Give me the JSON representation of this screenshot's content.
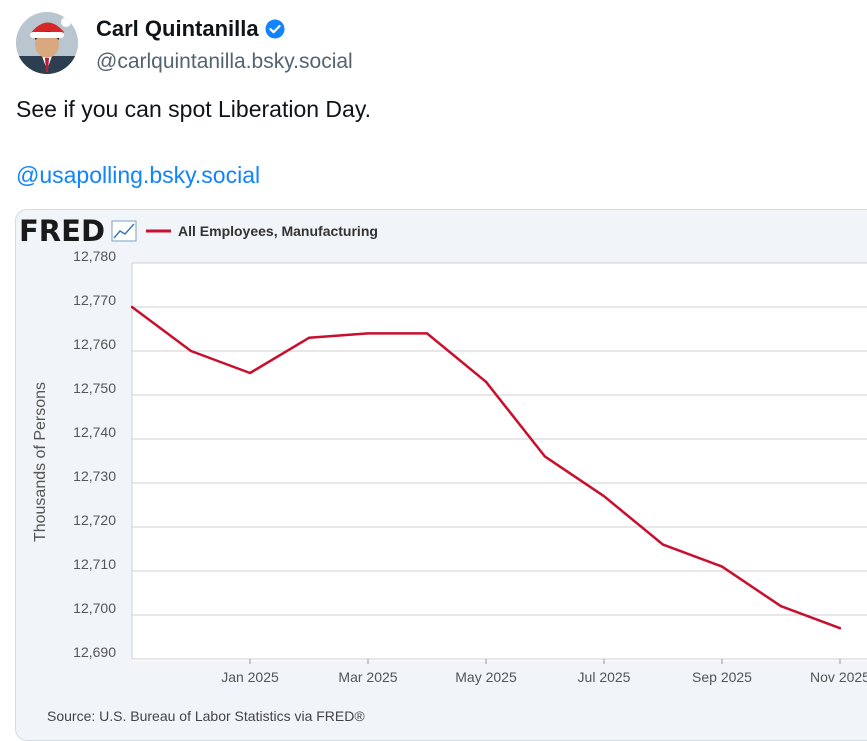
{
  "post": {
    "author_name": "Carl Quintanilla",
    "author_handle": "@carlquintanilla.bsky.social",
    "text": "See if you can spot Liberation Day.",
    "mention": "@usapolling.bsky.social",
    "verified": true
  },
  "colors": {
    "link": "#1083fe",
    "verified": "#1083fe",
    "series": "#c8102e",
    "handle": "#536471"
  },
  "icons": {
    "verified": "checkmark-badge-icon",
    "fred_graph": "line-graph-icon"
  },
  "chart_data": {
    "type": "line",
    "brand": "FRED",
    "legend": "All Employees, Manufacturing",
    "ylabel": "Thousands of Persons",
    "source": "Source: U.S. Bureau of Labor Statistics via FRED®",
    "ylim": [
      12690,
      12780
    ],
    "yticks": [
      "12,780",
      "12,770",
      "12,760",
      "12,750",
      "12,740",
      "12,730",
      "12,720",
      "12,710",
      "12,700",
      "12,690"
    ],
    "xtick_labels": [
      "Jan 2025",
      "Mar 2025",
      "May 2025",
      "Jul 2025",
      "Sep 2025",
      "Nov 2025"
    ],
    "xtick_dates": [
      "2025-01",
      "2025-03",
      "2025-05",
      "2025-07",
      "2025-09",
      "2025-11"
    ],
    "x": [
      "2024-11",
      "2024-12",
      "2025-01",
      "2025-02",
      "2025-03",
      "2025-04",
      "2025-05",
      "2025-06",
      "2025-07",
      "2025-08",
      "2025-09",
      "2025-10",
      "2025-11"
    ],
    "series": [
      {
        "name": "All Employees, Manufacturing",
        "values": [
          12770,
          12760,
          12755,
          12763,
          12764,
          12764,
          12753,
          12736,
          12727,
          12716,
          12711,
          12702,
          12697
        ]
      }
    ],
    "grid": true
  }
}
